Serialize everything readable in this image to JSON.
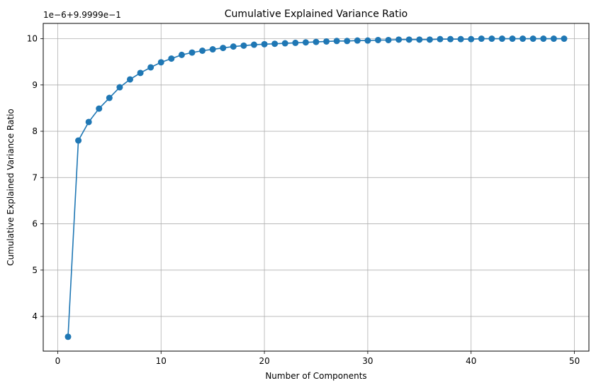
{
  "chart_data": {
    "type": "line",
    "title": "Cumulative Explained Variance Ratio",
    "xlabel": "Number of Components",
    "ylabel": "Cumulative Explained Variance Ratio",
    "offset_label": "1e−6+9.9999e−1",
    "xlim": [
      -1.4,
      51.4
    ],
    "ylim": [
      3.25,
      10.33
    ],
    "xticks": [
      0,
      10,
      20,
      30,
      40,
      50
    ],
    "yticks": [
      4,
      5,
      6,
      7,
      8,
      9,
      10
    ],
    "grid": true,
    "colors": {
      "series": "#1f77b4",
      "grid": "#b0b0b0",
      "axes": "#000000"
    },
    "series": [
      {
        "x": [
          1,
          2,
          3,
          4,
          5,
          6,
          7,
          8,
          9,
          10,
          11,
          12,
          13,
          14,
          15,
          16,
          17,
          18,
          19,
          20,
          21,
          22,
          23,
          24,
          25,
          26,
          27,
          28,
          29,
          30,
          31,
          32,
          33,
          34,
          35,
          36,
          37,
          38,
          39,
          40,
          41,
          42,
          43,
          44,
          45,
          46,
          47,
          48,
          49
        ],
        "values": [
          3.56,
          7.8,
          8.2,
          8.49,
          8.72,
          8.95,
          9.12,
          9.26,
          9.38,
          9.49,
          9.57,
          9.65,
          9.7,
          9.74,
          9.77,
          9.8,
          9.83,
          9.85,
          9.87,
          9.88,
          9.89,
          9.9,
          9.91,
          9.92,
          9.93,
          9.94,
          9.95,
          9.95,
          9.96,
          9.96,
          9.97,
          9.97,
          9.98,
          9.98,
          9.98,
          9.98,
          9.99,
          9.99,
          9.99,
          9.99,
          10.0,
          10.0,
          10.0,
          10.0,
          10.0,
          10.0,
          10.0,
          10.0,
          10.0
        ]
      }
    ]
  }
}
